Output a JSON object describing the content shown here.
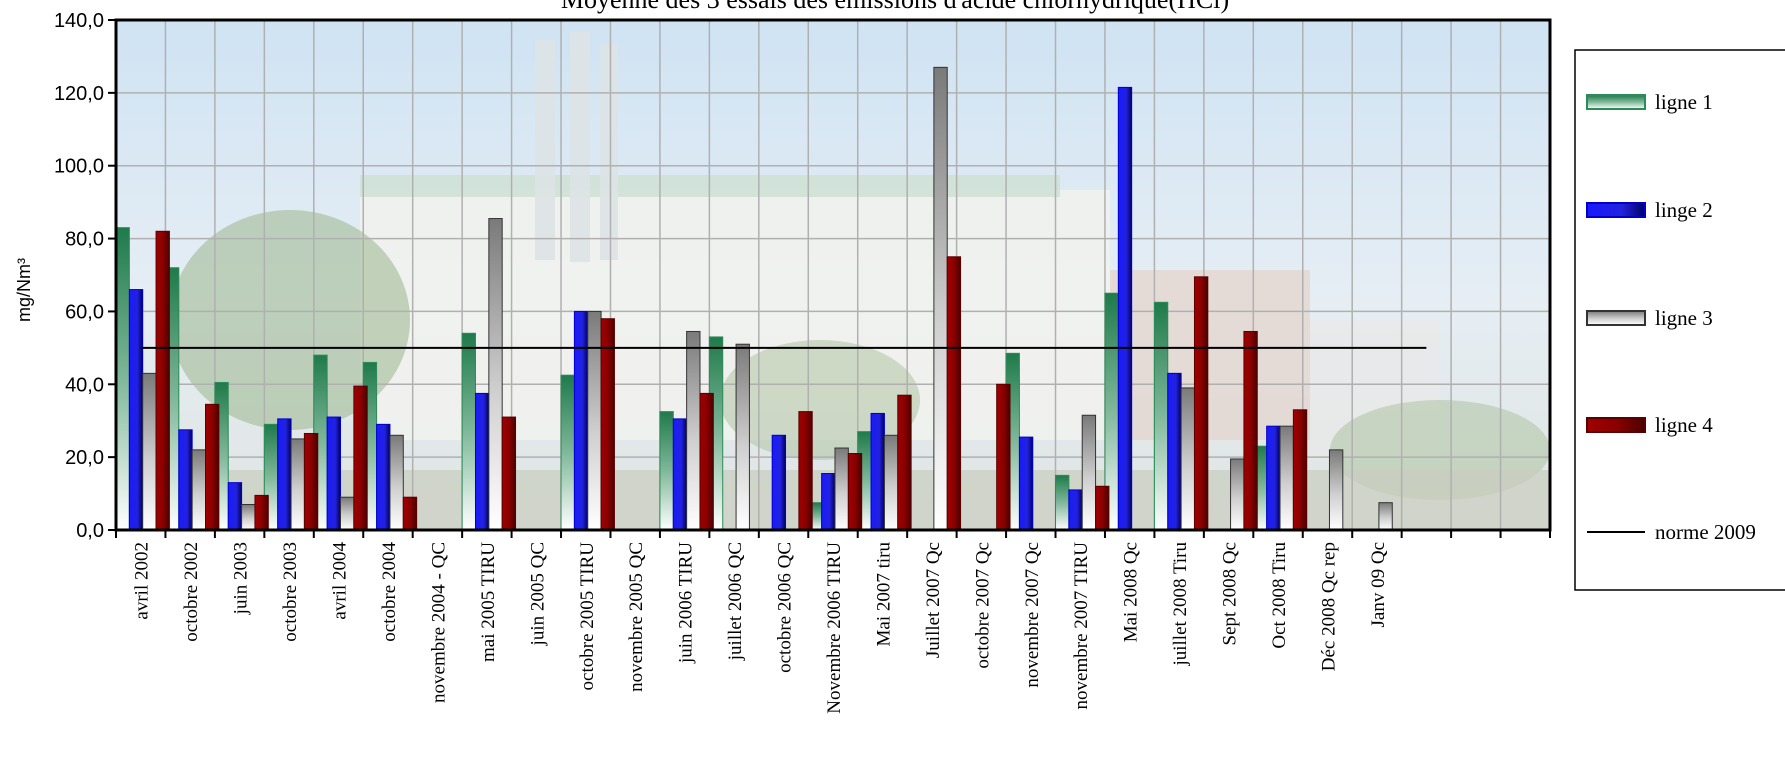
{
  "chart_data": {
    "type": "bar",
    "title": "Moyenne des 3 essais des émissions d'acide chlorhydrique(HCl)",
    "ylabel": "mg/Nm³",
    "xlabel": "",
    "ylim": [
      0,
      140
    ],
    "yticks": [
      "0,0",
      "20,0",
      "40,0",
      "60,0",
      "80,0",
      "100,0",
      "120,0",
      "140,0"
    ],
    "grid": true,
    "legend_position": "right",
    "categories": [
      "avril 2002",
      "octobre 2002",
      "juin 2003",
      "octobre 2003",
      "avril 2004",
      "octobre 2004",
      "novembre 2004 - QC",
      "mai 2005 TIRU",
      "juin 2005 QC",
      "octobre 2005 TIRU",
      "novembre 2005 QC",
      "juin 2006 TIRU",
      "juillet 2006 QC",
      "octobre 2006 QC",
      "Novembre 2006 TIRU",
      "Mai 2007 tiru",
      "Juillet 2007 Qc",
      "octobre 2007 Qc",
      "novembre 2007 Qc",
      "novembre 2007 TIRU",
      "Mai 2008 Qc",
      "juillet 2008 Tiru",
      "Sept 2008 Qc",
      "Oct 2008 Tiru",
      "Déc 2008 Qc rep",
      "Janv 09 Qc"
    ],
    "series": [
      {
        "name": "ligne 1",
        "color": "#2e8b57",
        "values": [
          83,
          72,
          40.5,
          29,
          48,
          46,
          null,
          54,
          null,
          42.5,
          null,
          32.5,
          53,
          null,
          7.5,
          27,
          null,
          null,
          48.5,
          15,
          65,
          62.5,
          null,
          23,
          null,
          null
        ]
      },
      {
        "name": "linge 2",
        "color": "#1a1aff",
        "values": [
          66,
          27.5,
          13,
          30.5,
          31,
          29,
          null,
          37.5,
          null,
          60,
          null,
          30.5,
          null,
          26,
          15.5,
          32,
          null,
          null,
          25.5,
          11,
          121.5,
          43,
          null,
          28.5,
          null,
          null
        ]
      },
      {
        "name": "ligne 3",
        "color": "#808080",
        "values": [
          43,
          22,
          7,
          25,
          9,
          26,
          null,
          85.5,
          null,
          60,
          null,
          54.5,
          51,
          null,
          22.5,
          26,
          127,
          null,
          null,
          31.5,
          null,
          39,
          19.5,
          28.5,
          22,
          7.5
        ]
      },
      {
        "name": "ligne 4",
        "color": "#8b0000",
        "values": [
          82,
          34.5,
          9.5,
          26.5,
          39.5,
          9,
          null,
          31,
          null,
          58,
          null,
          37.5,
          null,
          32.5,
          21,
          37,
          75,
          40,
          null,
          12,
          null,
          69.5,
          54.5,
          33,
          null,
          null
        ]
      }
    ],
    "reference_line": {
      "name": "norme 2009",
      "value": 50,
      "color": "#000000"
    }
  }
}
